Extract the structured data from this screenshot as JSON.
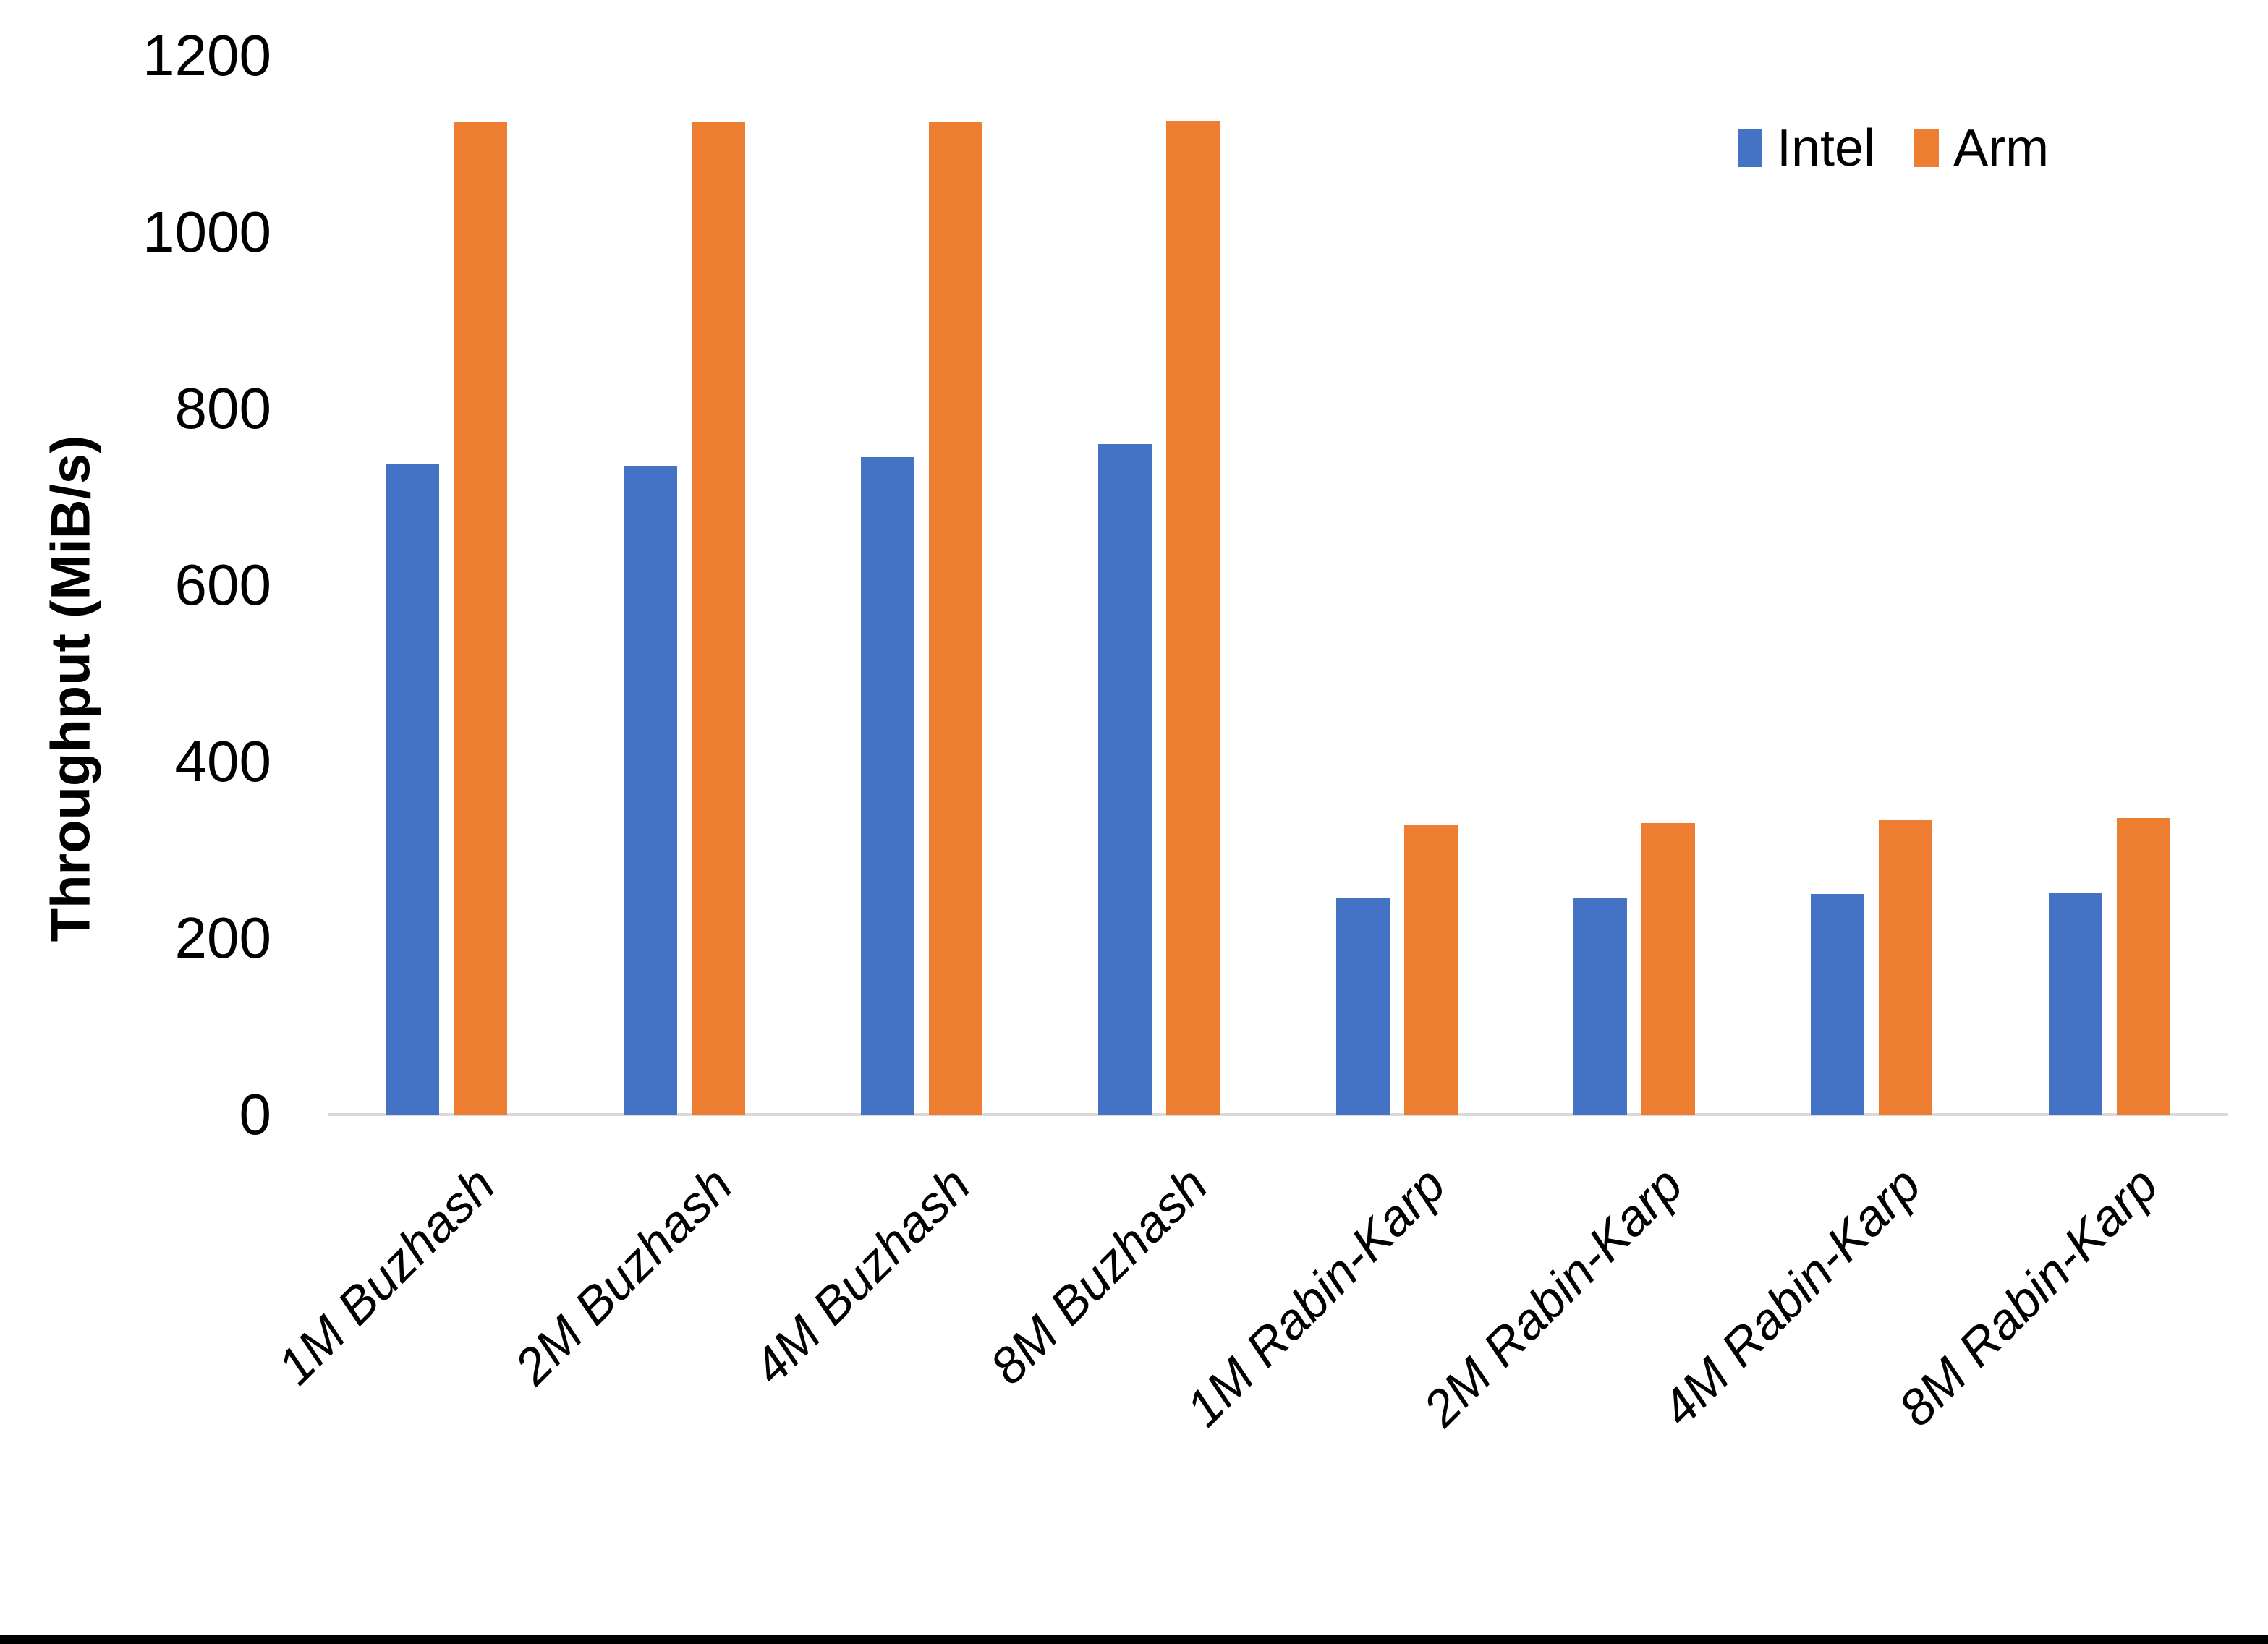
{
  "chart_data": {
    "type": "bar",
    "title": "",
    "xlabel": "",
    "ylabel": "Throughput (MiB/s)",
    "categories": [
      "1M Buzhash",
      "2M Buzhash",
      "4M Buzhash",
      "8M Buzhash",
      "1M Rabin-Karp",
      "2M Rabin-Karp",
      "4M Rabin-Karp",
      "8M Rabin-Karp"
    ],
    "series": [
      {
        "name": "Intel",
        "color": "#4472C4",
        "values": [
          737,
          735,
          745,
          760,
          246,
          246,
          250,
          251
        ]
      },
      {
        "name": "Arm",
        "color": "#ED7D31",
        "values": [
          1125,
          1125,
          1125,
          1126,
          328,
          330,
          334,
          336
        ]
      }
    ],
    "ylim": [
      0,
      1200
    ],
    "yticks": [
      0,
      200,
      400,
      600,
      800,
      1000,
      1200
    ],
    "grid": false,
    "legend_position": "top-right",
    "axis_line_color": "#D9D9D9",
    "text_color": "#000000",
    "category_label_style": "italic, rotated -45deg"
  }
}
